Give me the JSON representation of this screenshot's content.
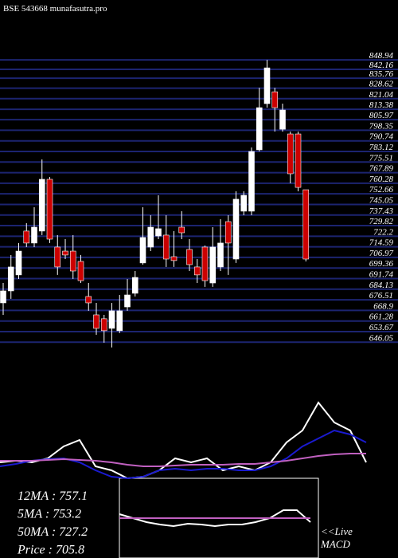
{
  "chart_data": [
    {
      "type": "candlestick",
      "title": "BSE 543668 munafasutra.pro",
      "candles": [
        {
          "open": 674.3,
          "high": 688.6,
          "low": 665.7,
          "close": 682.9
        },
        {
          "open": 682.9,
          "high": 708.7,
          "low": 677.2,
          "close": 700.1
        },
        {
          "open": 694.4,
          "high": 717.3,
          "low": 691.5,
          "close": 711.5
        },
        {
          "open": 725.9,
          "high": 731.6,
          "low": 714.4,
          "close": 717.3
        },
        {
          "open": 717.3,
          "high": 743.0,
          "low": 714.4,
          "close": 728.7
        },
        {
          "open": 725.9,
          "high": 777.4,
          "low": 723.0,
          "close": 763.1
        },
        {
          "open": 763.1,
          "high": 764.8,
          "low": 717.3,
          "close": 720.1
        },
        {
          "open": 714.4,
          "high": 723.0,
          "low": 694.4,
          "close": 700.1
        },
        {
          "open": 711.5,
          "high": 720.1,
          "low": 705.8,
          "close": 708.7
        },
        {
          "open": 711.5,
          "high": 723.0,
          "low": 691.5,
          "close": 697.2
        },
        {
          "open": 704.1,
          "high": 708.7,
          "low": 688.6,
          "close": 690.3
        },
        {
          "open": 678.9,
          "high": 688.6,
          "low": 668.6,
          "close": 674.3
        },
        {
          "open": 665.7,
          "high": 674.3,
          "low": 651.4,
          "close": 656.0
        },
        {
          "open": 662.9,
          "high": 665.7,
          "low": 645.7,
          "close": 654.3
        },
        {
          "open": 656.0,
          "high": 674.3,
          "low": 642.3,
          "close": 668.6
        },
        {
          "open": 654.3,
          "high": 680.0,
          "low": 652.6,
          "close": 668.6
        },
        {
          "open": 671.4,
          "high": 691.5,
          "low": 668.6,
          "close": 680.0
        },
        {
          "open": 681.2,
          "high": 697.2,
          "low": 678.9,
          "close": 692.6
        },
        {
          "open": 703.0,
          "high": 743.0,
          "low": 701.8,
          "close": 721.3
        },
        {
          "open": 714.4,
          "high": 737.3,
          "low": 711.5,
          "close": 728.7
        },
        {
          "open": 722.4,
          "high": 751.6,
          "low": 720.1,
          "close": 727.6
        },
        {
          "open": 723.0,
          "high": 737.3,
          "low": 700.1,
          "close": 705.8
        },
        {
          "open": 707.5,
          "high": 725.9,
          "low": 700.1,
          "close": 704.7
        },
        {
          "open": 728.7,
          "high": 740.2,
          "low": 720.1,
          "close": 724.7
        },
        {
          "open": 712.7,
          "high": 720.1,
          "low": 697.2,
          "close": 701.8
        },
        {
          "open": 700.1,
          "high": 705.8,
          "low": 688.6,
          "close": 694.4
        },
        {
          "open": 714.4,
          "high": 715.5,
          "low": 685.8,
          "close": 690.3
        },
        {
          "open": 688.6,
          "high": 728.7,
          "low": 685.8,
          "close": 714.4
        },
        {
          "open": 700.1,
          "high": 734.4,
          "low": 697.2,
          "close": 717.3
        },
        {
          "open": 732.7,
          "high": 737.3,
          "low": 694.4,
          "close": 717.3
        },
        {
          "open": 705.8,
          "high": 754.5,
          "low": 703.0,
          "close": 748.8
        },
        {
          "open": 740.2,
          "high": 754.5,
          "low": 737.3,
          "close": 751.6
        },
        {
          "open": 740.2,
          "high": 786.0,
          "low": 737.3,
          "close": 783.1
        },
        {
          "open": 784.3,
          "high": 828.9,
          "low": 783.1,
          "close": 814.6
        },
        {
          "open": 817.5,
          "high": 848.9,
          "low": 814.6,
          "close": 843.2
        },
        {
          "open": 826.0,
          "high": 828.9,
          "low": 797.4,
          "close": 814.6
        },
        {
          "open": 799.1,
          "high": 817.5,
          "low": 797.4,
          "close": 812.9
        },
        {
          "open": 795.7,
          "high": 797.4,
          "low": 760.2,
          "close": 767.1
        },
        {
          "open": 795.7,
          "high": 797.4,
          "low": 754.5,
          "close": 757.3
        },
        {
          "open": 755.6,
          "high": 755.6,
          "low": 704.1,
          "close": 705.8
        }
      ],
      "up_color": "#ffffff",
      "down_color": "#cc0000",
      "grid_color": "#1c2470",
      "ylim": [
        642.2,
        849
      ],
      "yticks": [
        848.94,
        842.16,
        835.76,
        828.62,
        821.04,
        813.38,
        805.97,
        798.35,
        790.74,
        783.12,
        775.51,
        767.89,
        760.28,
        752.66,
        745.05,
        737.43,
        729.82,
        722.2,
        714.59,
        706.97,
        699.36,
        691.74,
        684.13,
        676.51,
        668.9,
        661.28,
        653.67,
        646.05
      ],
      "annotations": [
        "12MA : 757.1",
        "5MA : 753.2",
        "50MA : 727.2",
        "Price   : 705.8"
      ]
    },
    {
      "type": "line",
      "ylim": [
        0,
        100
      ],
      "x": [
        0,
        20,
        40,
        60,
        80,
        100,
        120,
        140,
        160,
        180,
        200,
        220,
        240,
        260,
        280,
        300,
        320,
        340,
        360,
        380,
        400,
        420,
        440,
        460
      ],
      "series": [
        {
          "color": "#ffffff",
          "values": [
            20,
            22,
            20,
            25,
            40,
            48,
            15,
            10,
            0,
            2,
            10,
            25,
            20,
            25,
            10,
            15,
            10,
            20,
            45,
            60,
            95,
            70,
            60,
            20
          ]
        },
        {
          "color": "#1a1ad0",
          "values": [
            15,
            18,
            22,
            24,
            25,
            20,
            10,
            2,
            0,
            2,
            10,
            12,
            10,
            12,
            12,
            10,
            10,
            15,
            25,
            40,
            50,
            60,
            55,
            45
          ]
        },
        {
          "color": "#c060c0",
          "values": [
            22,
            22,
            22,
            23,
            24,
            23,
            22,
            20,
            17,
            15,
            15,
            16,
            17,
            17,
            17,
            18,
            18,
            20,
            22,
            25,
            28,
            30,
            31,
            31
          ]
        }
      ]
    },
    {
      "type": "line",
      "ylim": [
        0,
        100
      ],
      "x": [
        0,
        17,
        34,
        51,
        68,
        86,
        103,
        120,
        137,
        154,
        171,
        189,
        206,
        223,
        240
      ],
      "series": [
        {
          "color": "#ffffff",
          "values": [
            55,
            50,
            45,
            42,
            40,
            43,
            42,
            40,
            42,
            42,
            45,
            50,
            60,
            60,
            45
          ]
        },
        {
          "color": "#c060c0",
          "values": [
            50,
            50,
            50,
            50,
            50,
            50,
            50,
            50,
            50,
            50,
            50,
            50,
            50,
            50,
            50
          ]
        }
      ],
      "annotations": [
        "<<Live",
        "MACD"
      ]
    }
  ]
}
